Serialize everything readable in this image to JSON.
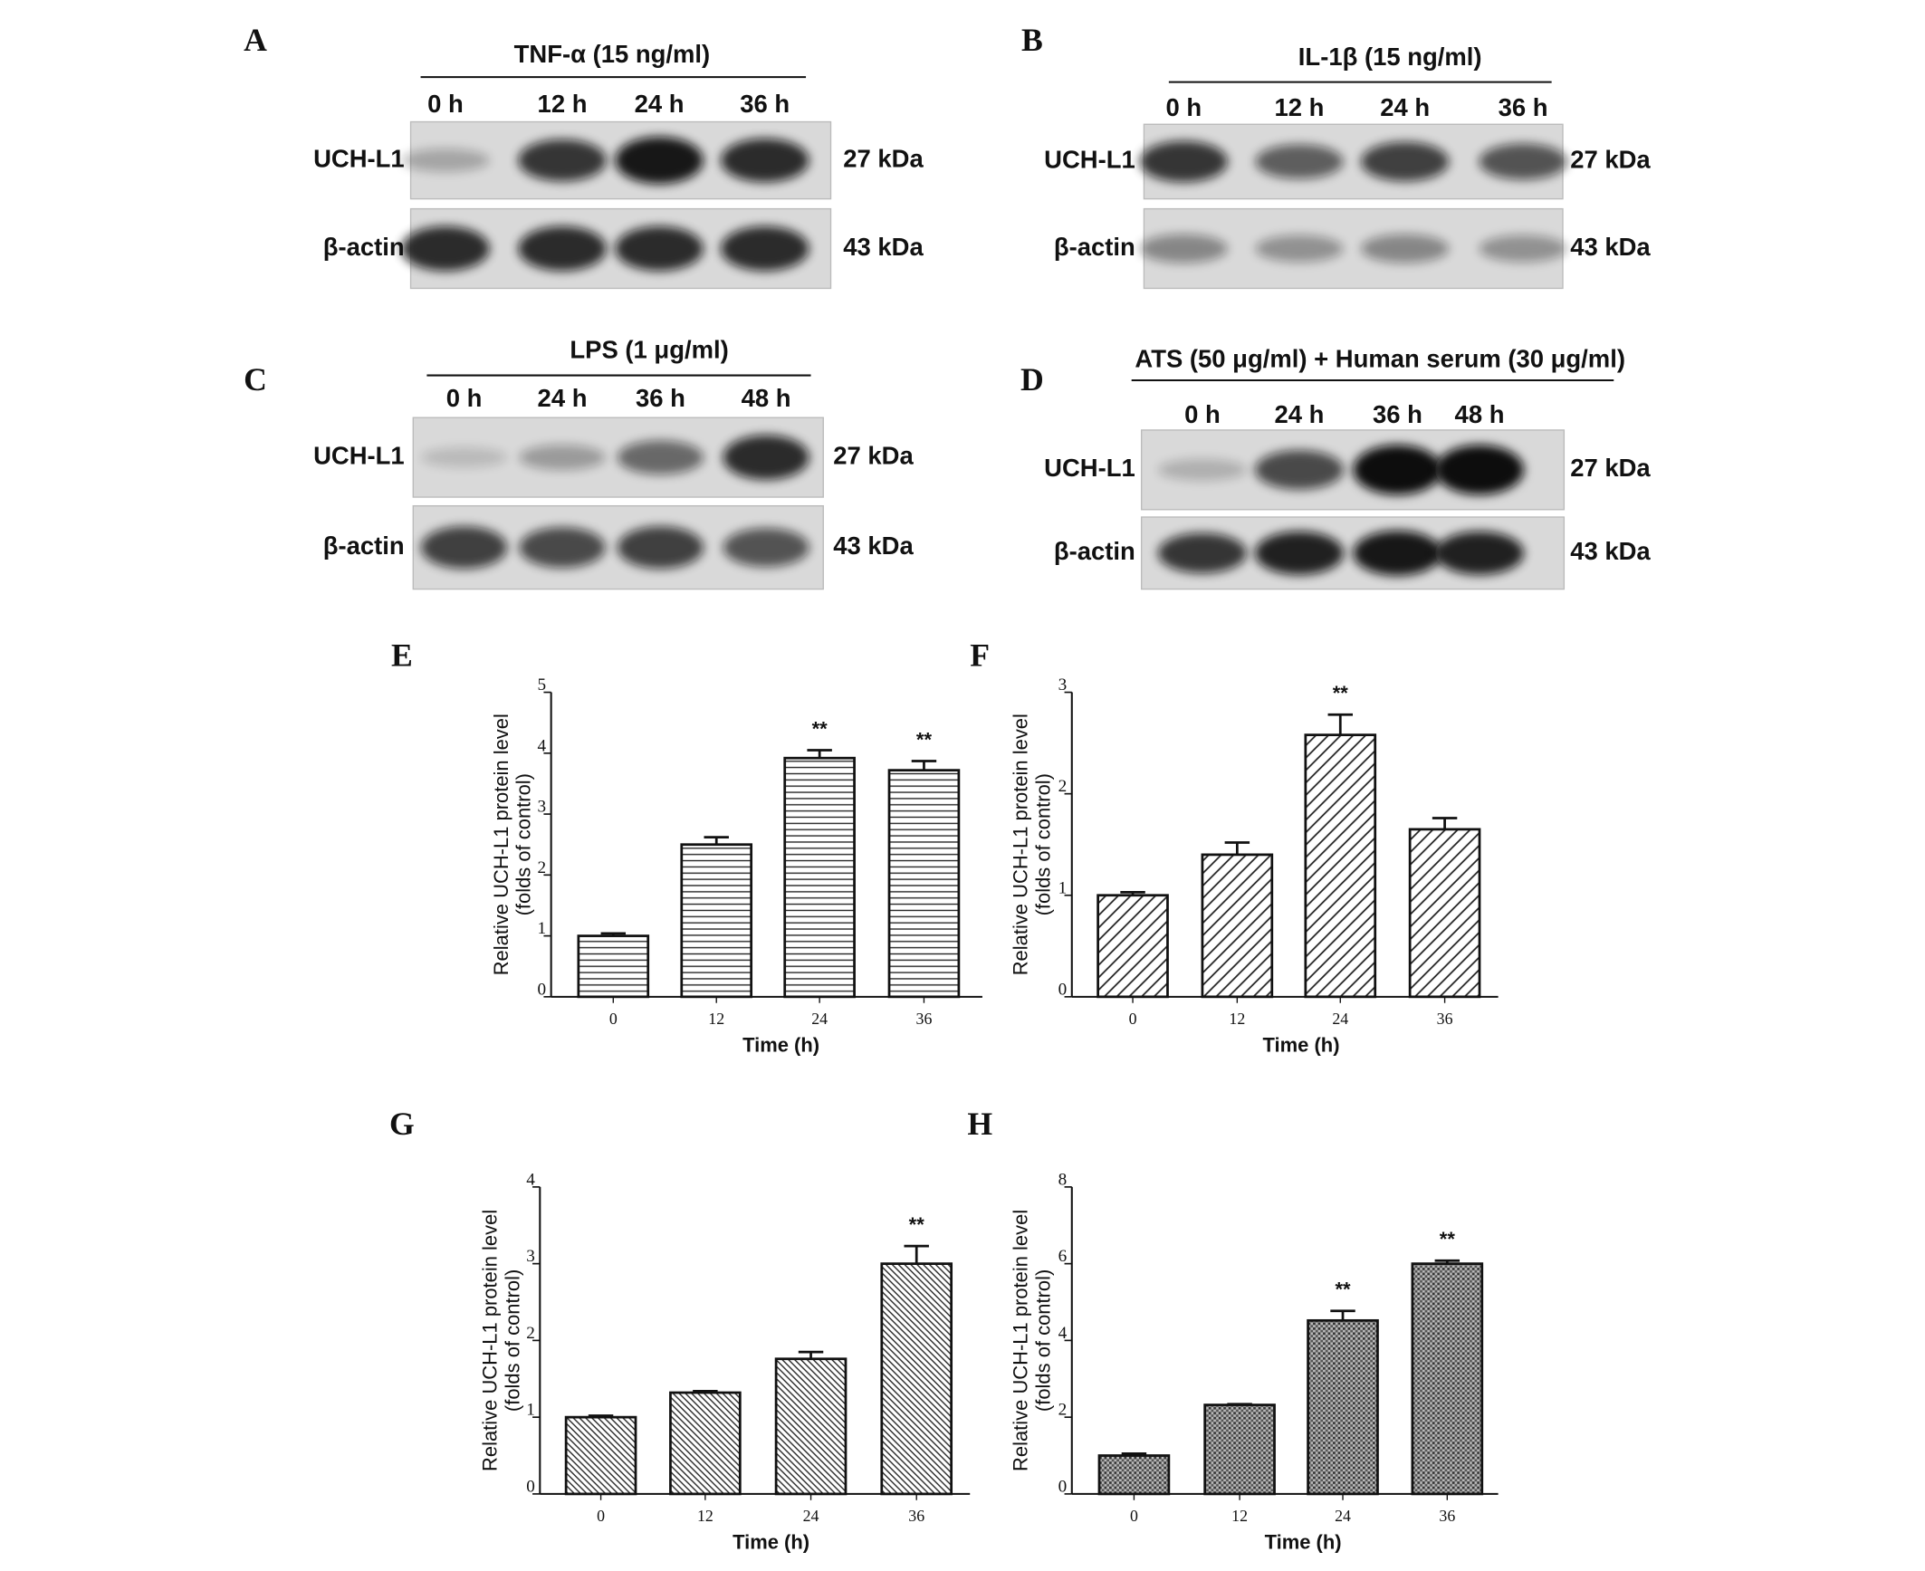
{
  "blots": [
    {
      "panel": "A",
      "treatment": "TNF-α (15 ng/ml)",
      "times": [
        "0 h",
        "12 h",
        "24 h",
        "36 h"
      ],
      "rows": [
        {
          "label": "UCH-L1",
          "size": "27 kDa"
        },
        {
          "label": "β-actin",
          "size": "43 kDa"
        }
      ]
    },
    {
      "panel": "B",
      "treatment": "IL-1β (15 ng/ml)",
      "times": [
        "0 h",
        "12 h",
        "24 h",
        "36 h"
      ],
      "rows": [
        {
          "label": "UCH-L1",
          "size": "27 kDa"
        },
        {
          "label": "β-actin",
          "size": "43 kDa"
        }
      ]
    },
    {
      "panel": "C",
      "treatment": "LPS (1 μg/ml)",
      "times": [
        "0 h",
        "24 h",
        "36 h",
        "48 h"
      ],
      "rows": [
        {
          "label": "UCH-L1",
          "size": "27 kDa"
        },
        {
          "label": "β-actin",
          "size": "43 kDa"
        }
      ]
    },
    {
      "panel": "D",
      "treatment": "ATS (50 μg/ml) + Human serum (30 μg/ml)",
      "times": [
        "0 h",
        "24 h",
        "36 h",
        "48 h"
      ],
      "rows": [
        {
          "label": "UCH-L1",
          "size": "27 kDa"
        },
        {
          "label": "β-actin",
          "size": "43 kDa"
        }
      ]
    }
  ],
  "chart_data": [
    {
      "type": "bar",
      "panel": "E",
      "ylabel": [
        "Relative UCH-L1 protein level",
        "(folds of control)"
      ],
      "xlabel": "Time (h)",
      "categories": [
        "0",
        "12",
        "24",
        "36"
      ],
      "values": [
        1.0,
        2.5,
        3.92,
        3.72
      ],
      "errors": [
        0.04,
        0.12,
        0.13,
        0.15
      ],
      "significance": [
        null,
        null,
        "**",
        "**"
      ],
      "ylim": [
        0,
        5
      ],
      "yticks": [
        0,
        1,
        2,
        3,
        4,
        5
      ],
      "pattern": "horizontal"
    },
    {
      "type": "bar",
      "panel": "F",
      "ylabel": [
        "Relative UCH-L1 protein level",
        "(folds of control)"
      ],
      "xlabel": "Time (h)",
      "categories": [
        "0",
        "12",
        "24",
        "36"
      ],
      "values": [
        1.0,
        1.4,
        2.58,
        1.65
      ],
      "errors": [
        0.03,
        0.12,
        0.2,
        0.11
      ],
      "significance": [
        null,
        null,
        "**",
        null
      ],
      "ylim": [
        0,
        3
      ],
      "yticks": [
        0,
        1,
        2,
        3
      ],
      "pattern": "diagonal"
    },
    {
      "type": "bar",
      "panel": "G",
      "ylabel": [
        "Relative UCH-L1 protein level",
        "(folds of control)"
      ],
      "xlabel": "Time (h)",
      "categories": [
        "0",
        "12",
        "24",
        "36"
      ],
      "values": [
        1.0,
        1.32,
        1.76,
        3.0
      ],
      "errors": [
        0.02,
        0.02,
        0.09,
        0.23
      ],
      "significance": [
        null,
        null,
        null,
        "**"
      ],
      "ylim": [
        0,
        4
      ],
      "yticks": [
        0,
        1,
        2,
        3,
        4
      ],
      "pattern": "fine-diagonal"
    },
    {
      "type": "bar",
      "panel": "H",
      "ylabel": [
        "Relative UCH-L1 protein level",
        "(folds of control)"
      ],
      "xlabel": "Time (h)",
      "categories": [
        "0",
        "12",
        "24",
        "36"
      ],
      "values": [
        1.0,
        2.32,
        4.52,
        6.0
      ],
      "errors": [
        0.05,
        0.02,
        0.25,
        0.08
      ],
      "significance": [
        null,
        null,
        "**",
        "**"
      ],
      "ylim": [
        0,
        8
      ],
      "yticks": [
        0,
        2,
        4,
        6,
        8
      ],
      "pattern": "dots"
    }
  ]
}
